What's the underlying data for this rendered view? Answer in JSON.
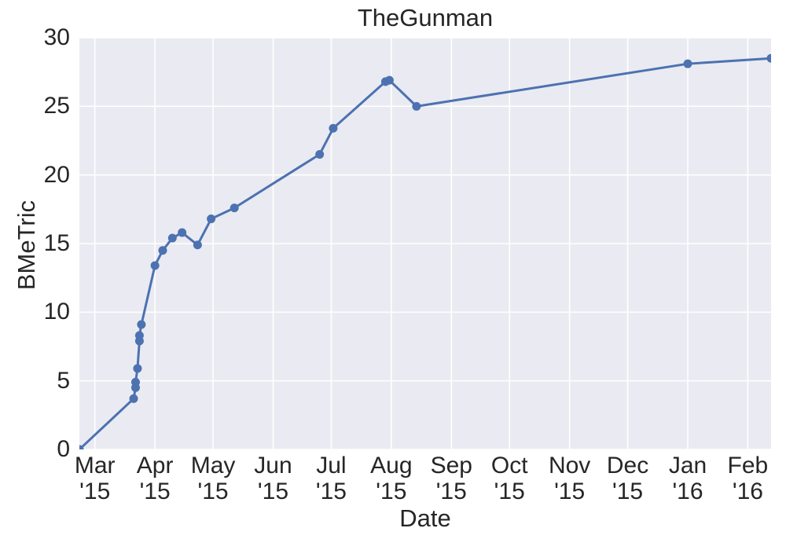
{
  "title": "TheGunman",
  "axis": {
    "xlabel": "Date",
    "ylabel": "BMeTric"
  },
  "colors": {
    "line": "#4c72b0",
    "marker": "#4c72b0",
    "plot_background": "#eaeaf2",
    "grid": "#ffffff",
    "text": "#262626"
  },
  "chart_data": {
    "type": "line",
    "title": "TheGunman",
    "xlabel": "Date",
    "ylabel": "BMeTric",
    "legend": "none",
    "grid": true,
    "marker": "circle",
    "ylim": [
      0,
      30
    ],
    "yticks": [
      0,
      5,
      10,
      15,
      20,
      25,
      30
    ],
    "xlim": [
      "2015-02-21",
      "2016-02-13"
    ],
    "xticks": [
      {
        "pos": "2015-03-01",
        "month": "Mar",
        "year": "'15"
      },
      {
        "pos": "2015-04-01",
        "month": "Apr",
        "year": "'15"
      },
      {
        "pos": "2015-05-01",
        "month": "May",
        "year": "'15"
      },
      {
        "pos": "2015-06-01",
        "month": "Jun",
        "year": "'15"
      },
      {
        "pos": "2015-07-01",
        "month": "Jul",
        "year": "'15"
      },
      {
        "pos": "2015-08-01",
        "month": "Aug",
        "year": "'15"
      },
      {
        "pos": "2015-09-01",
        "month": "Sep",
        "year": "'15"
      },
      {
        "pos": "2015-10-01",
        "month": "Oct",
        "year": "'15"
      },
      {
        "pos": "2015-11-01",
        "month": "Nov",
        "year": "'15"
      },
      {
        "pos": "2015-12-01",
        "month": "Dec",
        "year": "'15"
      },
      {
        "pos": "2016-01-01",
        "month": "Jan",
        "year": "'16"
      },
      {
        "pos": "2016-02-01",
        "month": "Feb",
        "year": "'16"
      }
    ],
    "series": [
      {
        "name": "BMeTric",
        "x_dates": [
          "2015-02-21",
          "2015-03-21",
          "2015-03-22",
          "2015-03-22",
          "2015-03-23",
          "2015-03-24",
          "2015-03-24",
          "2015-03-25",
          "2015-04-01",
          "2015-04-05",
          "2015-04-10",
          "2015-04-15",
          "2015-04-23",
          "2015-04-30",
          "2015-05-12",
          "2015-06-25",
          "2015-07-02",
          "2015-07-29",
          "2015-07-31",
          "2015-08-14",
          "2016-01-01",
          "2016-02-13"
        ],
        "values": [
          0,
          3.7,
          4.5,
          4.9,
          5.9,
          7.9,
          8.3,
          9.1,
          13.4,
          14.5,
          15.4,
          15.8,
          14.9,
          16.8,
          17.6,
          21.5,
          23.4,
          26.8,
          26.9,
          25.0,
          28.1,
          28.5
        ]
      }
    ]
  }
}
